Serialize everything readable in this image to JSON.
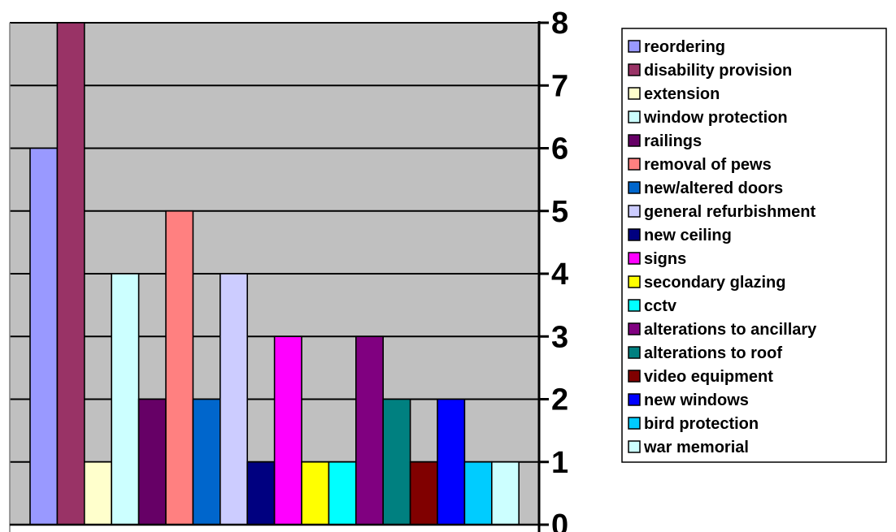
{
  "chart_data": {
    "type": "bar",
    "title": "",
    "xlabel": "",
    "ylabel": "",
    "ylim": [
      0,
      8
    ],
    "yticks": [
      0,
      1,
      2,
      3,
      4,
      5,
      6,
      7,
      8
    ],
    "y_axis_side": "right",
    "grid": true,
    "plot_background": "#c0c0c0",
    "legend_placement": "right",
    "series": [
      {
        "name": "reordering",
        "value": 6,
        "color": "#9999ff"
      },
      {
        "name": "disability provision",
        "value": 8,
        "color": "#993366"
      },
      {
        "name": "extension",
        "value": 1,
        "color": "#ffffcc"
      },
      {
        "name": "window protection",
        "value": 4,
        "color": "#ccffff"
      },
      {
        "name": "railings",
        "value": 2,
        "color": "#660066"
      },
      {
        "name": "removal of pews",
        "value": 5,
        "color": "#ff8080"
      },
      {
        "name": "new/altered doors",
        "value": 2,
        "color": "#0066cc"
      },
      {
        "name": "general refurbishment",
        "value": 4,
        "color": "#ccccff"
      },
      {
        "name": "new ceiling",
        "value": 1,
        "color": "#000080"
      },
      {
        "name": "signs",
        "value": 3,
        "color": "#ff00ff"
      },
      {
        "name": "secondary glazing",
        "value": 1,
        "color": "#ffff00"
      },
      {
        "name": "cctv",
        "value": 1,
        "color": "#00ffff"
      },
      {
        "name": "alterations to ancillary",
        "value": 3,
        "color": "#800080"
      },
      {
        "name": "alterations to roof",
        "value": 2,
        "color": "#008080"
      },
      {
        "name": "video equipment",
        "value": 1,
        "color": "#800000"
      },
      {
        "name": "new windows",
        "value": 2,
        "color": "#0000ff"
      },
      {
        "name": "bird protection",
        "value": 1,
        "color": "#00ccff"
      },
      {
        "name": "war memorial",
        "value": 1,
        "color": "#ccffff"
      }
    ]
  }
}
